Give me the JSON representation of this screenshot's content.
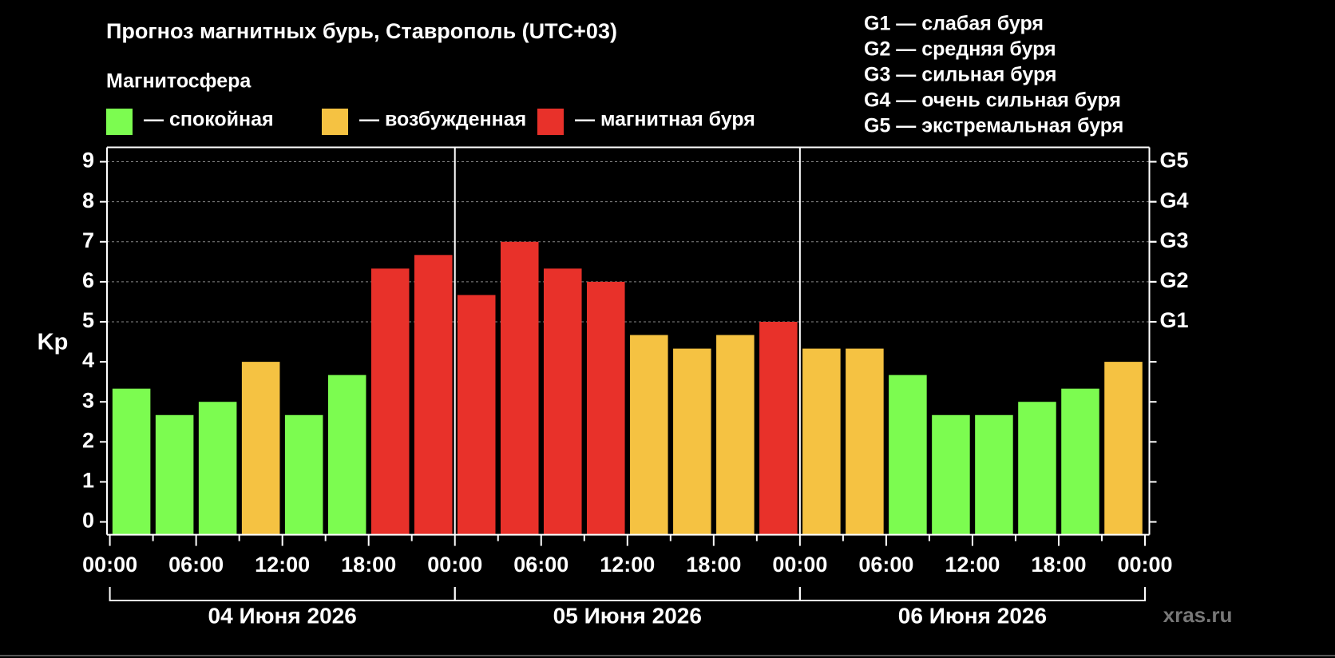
{
  "chart_data": {
    "type": "bar",
    "title": "Прогноз магнитных бурь, Ставрополь (UTC+03)",
    "legend_title": "Магнитосфера",
    "legend": [
      {
        "label": "— спокойная",
        "color": "#7cfc50"
      },
      {
        "label": "— возбужденная",
        "color": "#f5c242"
      },
      {
        "label": "— магнитная буря",
        "color": "#e8312a"
      }
    ],
    "storm_levels": [
      "G1 — слабая буря",
      "G2 — средняя буря",
      "G3 — сильная буря",
      "G4 — очень сильная буря",
      "G5 — экстремальная буря"
    ],
    "ylabel": "Kp",
    "days": [
      "04 Июня 2026",
      "05 Июня 2026",
      "06 Июня 2026"
    ],
    "watermark": "xras.ru",
    "x": [
      1.5,
      4.5,
      7.5,
      10.5,
      13.5,
      16.5,
      19.5,
      22.5,
      25.5,
      28.5,
      31.5,
      34.5,
      37.5,
      40.5,
      43.5,
      46.5,
      49.5,
      52.5,
      55.5,
      58.5,
      61.5,
      64.5,
      67.5,
      70.5
    ],
    "values": [
      3.33,
      2.67,
      3,
      4,
      2.67,
      3.67,
      6.33,
      6.67,
      5.67,
      7,
      6.33,
      6,
      4.67,
      4.33,
      4.67,
      5,
      4.33,
      4.33,
      3.67,
      2.67,
      2.67,
      3,
      3.33,
      4
    ],
    "colors": [
      "#7cfc50",
      "#7cfc50",
      "#7cfc50",
      "#f5c242",
      "#7cfc50",
      "#7cfc50",
      "#e8312a",
      "#e8312a",
      "#e8312a",
      "#e8312a",
      "#e8312a",
      "#e8312a",
      "#f5c242",
      "#f5c242",
      "#f5c242",
      "#e8312a",
      "#f5c242",
      "#f5c242",
      "#7cfc50",
      "#7cfc50",
      "#7cfc50",
      "#7cfc50",
      "#7cfc50",
      "#f5c242"
    ],
    "xlim": [
      0,
      72
    ],
    "xticks": [
      {
        "value": 0,
        "label": "00:00"
      },
      {
        "value": 6,
        "label": "06:00"
      },
      {
        "value": 12,
        "label": "12:00"
      },
      {
        "value": 18,
        "label": "18:00"
      },
      {
        "value": 24,
        "label": "00:00"
      },
      {
        "value": 30,
        "label": "06:00"
      },
      {
        "value": 36,
        "label": "12:00"
      },
      {
        "value": 42,
        "label": "18:00"
      },
      {
        "value": 48,
        "label": "00:00"
      },
      {
        "value": 54,
        "label": "06:00"
      },
      {
        "value": 60,
        "label": "12:00"
      },
      {
        "value": 66,
        "label": "18:00"
      },
      {
        "value": 72,
        "label": "00:00"
      }
    ],
    "ylim": [
      -0.32,
      9.36
    ],
    "yticks": [
      0,
      1,
      2,
      3,
      4,
      5,
      6,
      7,
      8,
      9
    ],
    "y2lim": [
      -0.32,
      9.36
    ],
    "y2ticks": [
      {
        "value": 5,
        "label": "G1"
      },
      {
        "value": 6,
        "label": "G2"
      },
      {
        "value": 7,
        "label": "G3"
      },
      {
        "value": 8,
        "label": "G4"
      },
      {
        "value": 9,
        "label": "G5"
      }
    ],
    "grid": true
  }
}
